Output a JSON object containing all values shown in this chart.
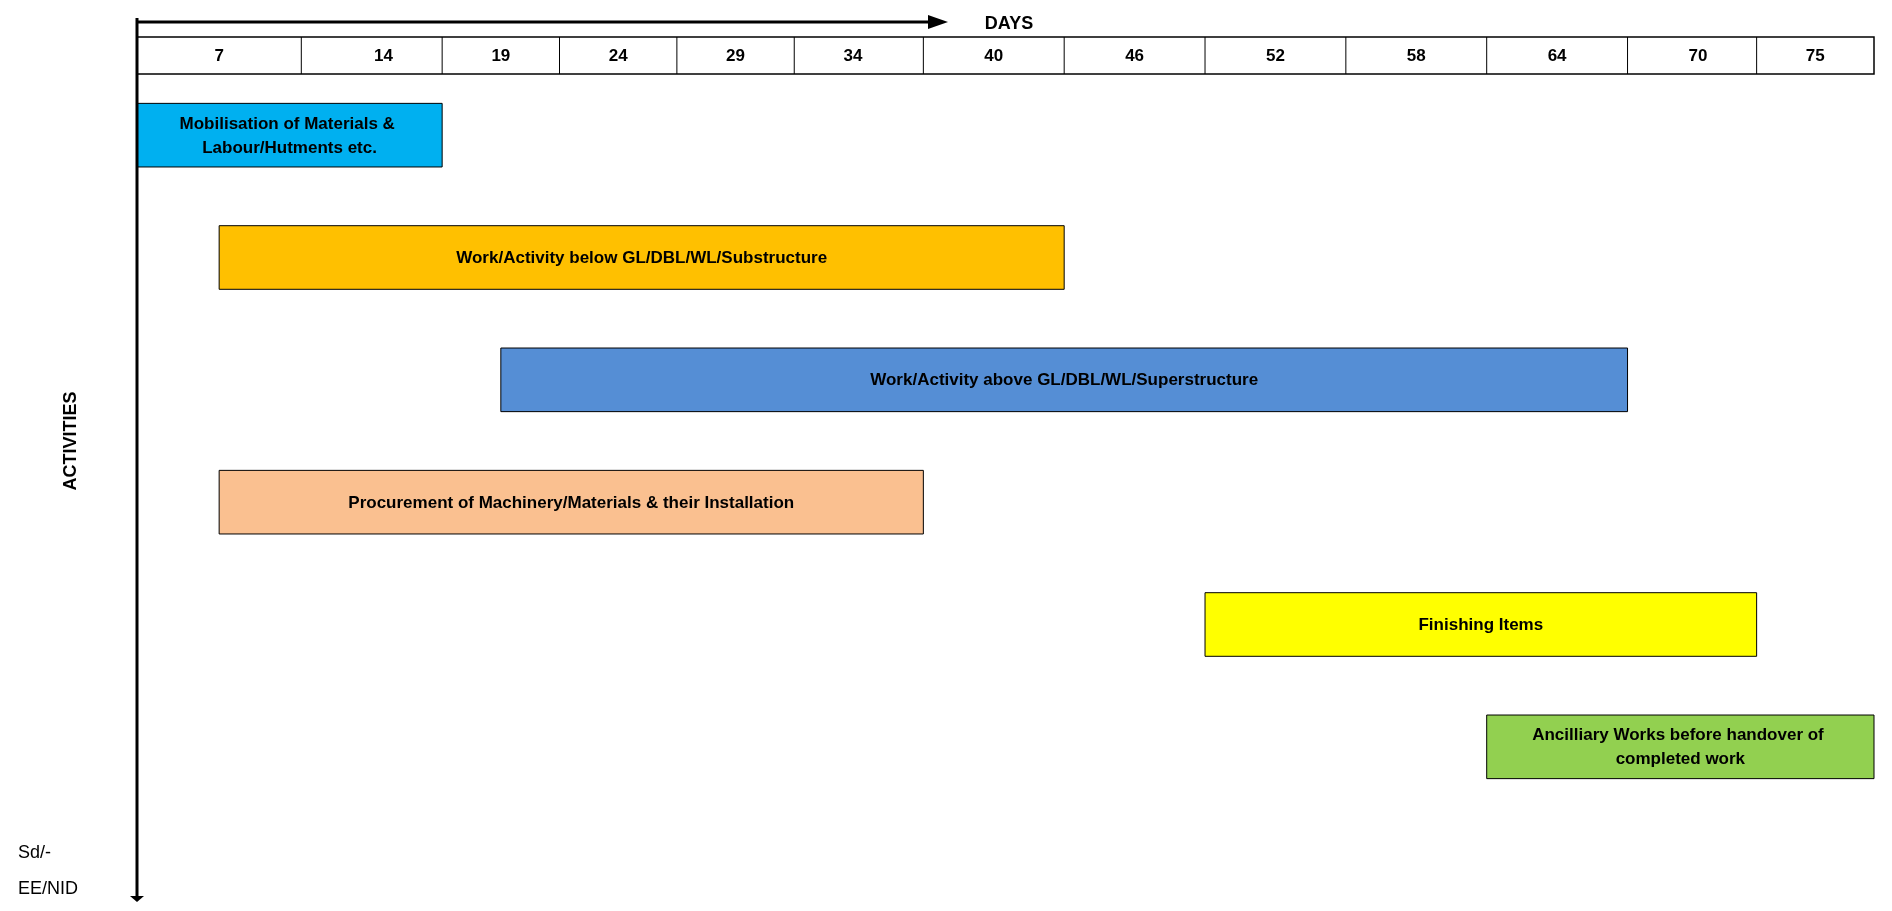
{
  "chart_data": {
    "type": "bar",
    "orientation": "horizontal",
    "xlabel": "DAYS",
    "ylabel": "ACTIVITIES",
    "categories": [
      "Mobilisation of Materials & Labour/Hutments etc.",
      "Work/Activity below GL/DBL/WL/Substructure",
      "Work/Activity above GL/DBL/WL/Superstructure",
      "Procurement of Machinery/Materials & their Installation",
      "Finishing Items",
      "Ancilliary Works before handover of completed work"
    ],
    "base": [
      3.5,
      7,
      19,
      7,
      49,
      61
    ],
    "values": [
      13,
      36,
      48,
      30,
      23.5,
      16.5
    ],
    "colors": [
      "#00b0f0",
      "#ffc000",
      "#558ed5",
      "#fac090",
      "#ffff00",
      "#92d050"
    ],
    "xlim": [
      3.5,
      77.5
    ],
    "xticks": [
      7,
      14,
      19,
      24,
      29,
      34,
      40,
      46,
      52,
      58,
      64,
      70,
      75
    ],
    "tick_labels": "x",
    "annotations": [
      "Sd/-\nEE/NID"
    ]
  }
}
